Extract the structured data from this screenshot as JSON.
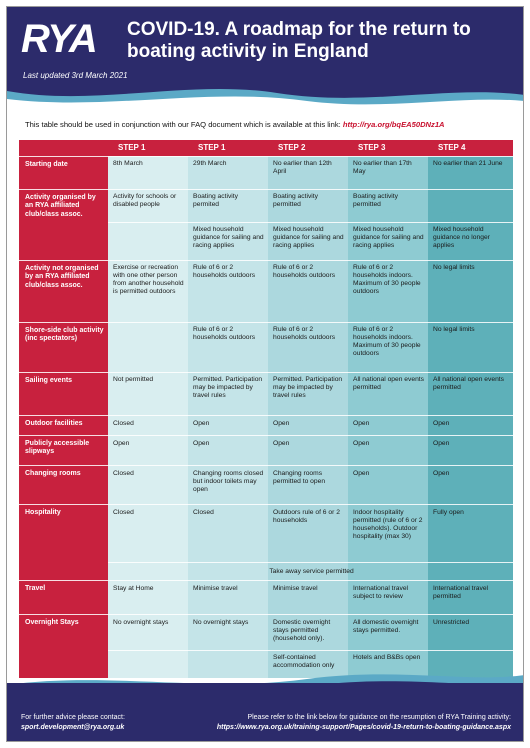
{
  "header": {
    "logo": "RYA",
    "title": "COVID-19. A roadmap for the return to boating activity in England",
    "updated": "Last updated 3rd March 2021"
  },
  "intro": {
    "text": "This table should be used in conjunction with our FAQ document which is available at this link:",
    "link": "http://rya.org/bqEA50DNz1A"
  },
  "steps": [
    "STEP 1",
    "STEP 2",
    "STEP 3",
    "STEP 4"
  ],
  "rows": {
    "starting_date": {
      "label": "Starting date",
      "s1": "8th March",
      "s2": "29th March",
      "s3": "No earlier than 12th April",
      "s4": "No earlier than 17th May",
      "s5": "No earlier than 21 June"
    },
    "activity_affiliated": {
      "label": "Activity organised by an RYA affiliated club/class assoc.",
      "a": {
        "s1": "Activity for schools or disabled people",
        "s2": "Boating activity permited",
        "s3": "Boating activity permitted",
        "s4": "Boating activity permitted"
      },
      "b": {
        "s2": "Mixed household guidance for sailing and racing applies",
        "s3": "Mixed household guidance for sailing and racing applies",
        "s4": "Mixed household guidance for sailing and racing applies",
        "s5": "Mixed household guidance no longer applies"
      }
    },
    "activity_not_affiliated": {
      "label": "Activity not organised by an RYA affiliated club/class assoc.",
      "s1": "Exercise or recreation with one other person from another household is permitted outdoors",
      "s2": "Rule of 6 or 2 households outdoors",
      "s3": "Rule of 6 or 2 households outdoors",
      "s4": "Rule of 6 or 2 households indoors. Maximum of 30 people outdoors",
      "s5": "No legal limits"
    },
    "shoreside": {
      "label": "Shore-side club activity (inc spectators)",
      "s2": "Rule of 6 or 2 households outdoors",
      "s3": "Rule of 6 or 2 households outdoors",
      "s4": "Rule of 6 or 2 households indoors. Maximum of 30 people outdoors",
      "s5": "No legal limits"
    },
    "sailing_events": {
      "label": "Sailing events",
      "s1": "Not permitted",
      "s2": "Permitted. Participation may be impacted by travel rules",
      "s3": "Permitted. Participation may be impacted by travel rules",
      "s4": "All national open events permitted",
      "s5": "All national open events permitted"
    },
    "outdoor_facilities": {
      "label": "Outdoor facilities",
      "s1": "Closed",
      "s2": "Open",
      "s3": "Open",
      "s4": "Open",
      "s5": "Open"
    },
    "slipways": {
      "label": "Publicly accessible slipways",
      "s1": "Open",
      "s2": "Open",
      "s3": "Open",
      "s4": "Open",
      "s5": "Open"
    },
    "changing_rooms": {
      "label": "Changing rooms",
      "s1": "Closed",
      "s2": "Changing rooms closed but indoor toilets may open",
      "s3": "Changing rooms permitted to open",
      "s4": "Open",
      "s5": "Open"
    },
    "hospitality": {
      "label": "Hospitality",
      "s1": "Closed",
      "s2": "Closed",
      "s3": "Outdoors rule of 6 or 2 households",
      "s4": "Indoor hospitality permitted (rule of 6 or 2 households). Outdoor hospitality (max 30)",
      "s5": "Fully open",
      "takeaway": "Take away service permitted"
    },
    "travel": {
      "label": "Travel",
      "s1": "Stay at Home",
      "s2": "Minimise travel",
      "s3": "Minimise travel",
      "s4": "International travel subject to review",
      "s5": "International travel permitted"
    },
    "overnight": {
      "label": "Overnight Stays",
      "a": {
        "s1": "No overnight stays",
        "s2": "No overnight stays",
        "s3": "Domestic overnight stays permitted (household only).",
        "s4": "All domestic overnight stays permitted.",
        "s5": "Unrestricted"
      },
      "b": {
        "s3": "Self-contained accommodation only",
        "s4": "Hotels and B&Bs open"
      }
    }
  },
  "footer": {
    "left_text": "For further advice please contact:",
    "email": "sport.development@rya.org.uk",
    "right_text": "Please refer to the link below for guidance on the resumption of RYA Training activity:",
    "url": "https://www.rya.org.uk/training-support/Pages/covid-19-return-to-boating-guidance.aspx"
  }
}
